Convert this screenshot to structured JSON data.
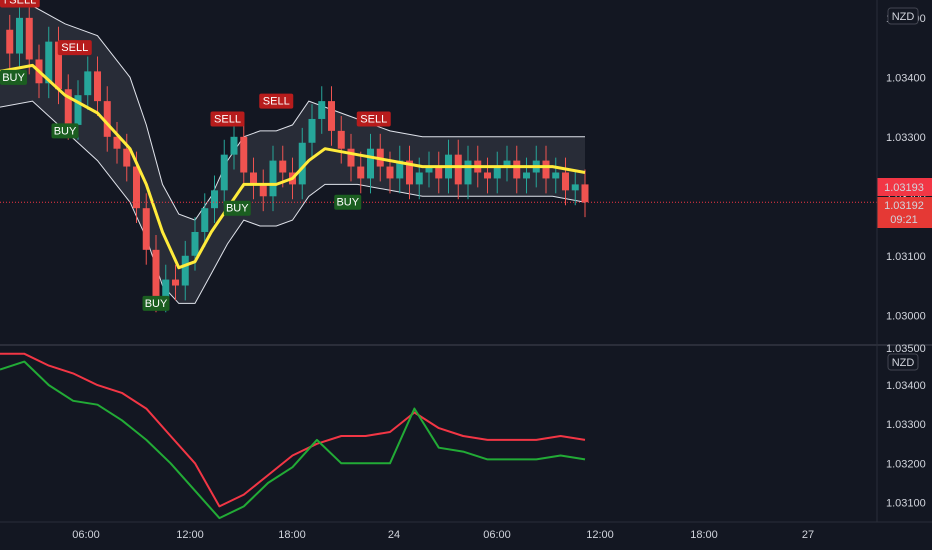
{
  "chart_data": [
    {
      "type": "candlestick",
      "title": "",
      "currency_badge": "NZD",
      "ylim": [
        1.0295,
        1.0353
      ],
      "y_ticks": [
        "1.03400",
        "1.03300",
        "1.03200",
        "1.03100",
        "1.03000"
      ],
      "top_tick_partial": "1.03500",
      "x_ticks": [
        "06:00",
        "12:00",
        "18:00",
        "24",
        "06:00",
        "12:00",
        "18:00",
        "27"
      ],
      "price_badge": {
        "value": "1.03193",
        "color": "#f23645"
      },
      "price_badge2": {
        "value": "1.03192",
        "countdown": "09:21"
      },
      "close_series": {
        "x": [
          0,
          3,
          6,
          9,
          12,
          15,
          18,
          21,
          24,
          27,
          30,
          33,
          36,
          39,
          42,
          45,
          48,
          51,
          54,
          57,
          60,
          63,
          66,
          69,
          72,
          75,
          78,
          81,
          84,
          87,
          90,
          93,
          96,
          99,
          102,
          105,
          108,
          111,
          114,
          117,
          120,
          123,
          126,
          129,
          132,
          135,
          138,
          141,
          144,
          147,
          150,
          153,
          156,
          159,
          162,
          165,
          168,
          171,
          174,
          177,
          180
        ],
        "close": [
          1.0348,
          1.0344,
          1.035,
          1.0343,
          1.0339,
          1.0346,
          1.0338,
          1.0332,
          1.0337,
          1.0341,
          1.0336,
          1.033,
          1.0328,
          1.0325,
          1.0318,
          1.0311,
          1.0303,
          1.0306,
          1.0305,
          1.031,
          1.0314,
          1.0318,
          1.0321,
          1.0327,
          1.033,
          1.0324,
          1.0322,
          1.032,
          1.0326,
          1.0324,
          1.0322,
          1.0329,
          1.0333,
          1.0336,
          1.0331,
          1.0328,
          1.0325,
          1.0323,
          1.0328,
          1.0325,
          1.0323,
          1.0326,
          1.0322,
          1.0324,
          1.0325,
          1.0323,
          1.0327,
          1.0322,
          1.0326,
          1.0324,
          1.0323,
          1.0325,
          1.0326,
          1.0323,
          1.0324,
          1.0326,
          1.0323,
          1.0324,
          1.0321,
          1.0322,
          1.0319
        ]
      },
      "ma": {
        "name": "",
        "color": "#ffeb3b",
        "x": [
          0,
          10,
          20,
          30,
          40,
          45,
          50,
          55,
          60,
          65,
          70,
          75,
          80,
          85,
          90,
          95,
          100,
          110,
          120,
          130,
          140,
          150,
          160,
          170,
          180
        ],
        "y": [
          1.0341,
          1.0342,
          1.0337,
          1.0334,
          1.0328,
          1.0322,
          1.0314,
          1.0308,
          1.0309,
          1.0314,
          1.0318,
          1.0322,
          1.0322,
          1.0322,
          1.0323,
          1.0326,
          1.0328,
          1.0327,
          1.0326,
          1.0325,
          1.0325,
          1.0325,
          1.0325,
          1.0325,
          1.0324
        ]
      },
      "band_upper": [
        1.0353,
        1.0352,
        1.0349,
        1.0347,
        1.034,
        1.0332,
        1.0322,
        1.0317,
        1.0316,
        1.032,
        1.0326,
        1.033,
        1.0331,
        1.0331,
        1.0332,
        1.0336,
        1.0335,
        1.0333,
        1.0331,
        1.033,
        1.033,
        1.033,
        1.033,
        1.033,
        1.033
      ],
      "band_lower": [
        1.0335,
        1.0336,
        1.0331,
        1.0326,
        1.0319,
        1.0313,
        1.0305,
        1.0302,
        1.0302,
        1.0307,
        1.0312,
        1.0316,
        1.0315,
        1.0315,
        1.0316,
        1.032,
        1.0322,
        1.0322,
        1.0321,
        1.032,
        1.032,
        1.032,
        1.032,
        1.032,
        1.0319
      ],
      "signals": [
        {
          "label": "LL",
          "type": "sell",
          "x": 0,
          "y": 1.0353
        },
        {
          "label": "SELL",
          "type": "sell",
          "x": 7,
          "y": 1.0353
        },
        {
          "label": "BUY",
          "type": "buy",
          "x": 4,
          "y": 1.034
        },
        {
          "label": "SELL",
          "type": "sell",
          "x": 23,
          "y": 1.0345
        },
        {
          "label": "BUY",
          "type": "buy",
          "x": 20,
          "y": 1.0331
        },
        {
          "label": "SELL",
          "type": "sell",
          "x": 70,
          "y": 1.0333
        },
        {
          "label": "BUY",
          "type": "buy",
          "x": 48,
          "y": 1.0302
        },
        {
          "label": "BUY",
          "type": "buy",
          "x": 73,
          "y": 1.0318
        },
        {
          "label": "SELL",
          "type": "sell",
          "x": 85,
          "y": 1.0336
        },
        {
          "label": "SELL",
          "type": "sell",
          "x": 115,
          "y": 1.0333
        },
        {
          "label": "BUY",
          "type": "buy",
          "x": 107,
          "y": 1.0319
        }
      ]
    },
    {
      "type": "line",
      "title": "",
      "currency_badge": "NZD",
      "ylim": [
        1.0305,
        1.035
      ],
      "y_ticks": [
        "1.03400",
        "1.03300",
        "1.03200",
        "1.03100"
      ],
      "top_tick_partial": "1.03500",
      "series": [
        {
          "name": "",
          "color": "#f23645",
          "x": [
            0,
            5,
            10,
            15,
            20,
            25,
            30,
            35,
            40,
            45,
            50,
            55,
            60,
            65,
            70,
            75,
            80,
            85,
            90,
            95,
            100,
            105,
            110,
            115,
            120
          ],
          "y": [
            1.0348,
            1.0348,
            1.0345,
            1.0343,
            1.034,
            1.0338,
            1.0334,
            1.0327,
            1.032,
            1.0309,
            1.0312,
            1.0317,
            1.0322,
            1.0325,
            1.0327,
            1.0327,
            1.0328,
            1.0333,
            1.0329,
            1.0327,
            1.0326,
            1.0326,
            1.0326,
            1.0327,
            1.0326
          ]
        },
        {
          "name": "",
          "color": "#22ab36",
          "x": [
            0,
            5,
            10,
            15,
            20,
            25,
            30,
            35,
            40,
            45,
            50,
            55,
            60,
            65,
            70,
            75,
            80,
            85,
            90,
            95,
            100,
            105,
            110,
            115,
            120
          ],
          "y": [
            1.0344,
            1.0346,
            1.034,
            1.0336,
            1.0335,
            1.0331,
            1.0326,
            1.032,
            1.0313,
            1.0306,
            1.0309,
            1.0315,
            1.0319,
            1.0326,
            1.032,
            1.032,
            1.032,
            1.0334,
            1.0324,
            1.0323,
            1.0321,
            1.0321,
            1.0321,
            1.0322,
            1.0321
          ]
        }
      ]
    }
  ]
}
